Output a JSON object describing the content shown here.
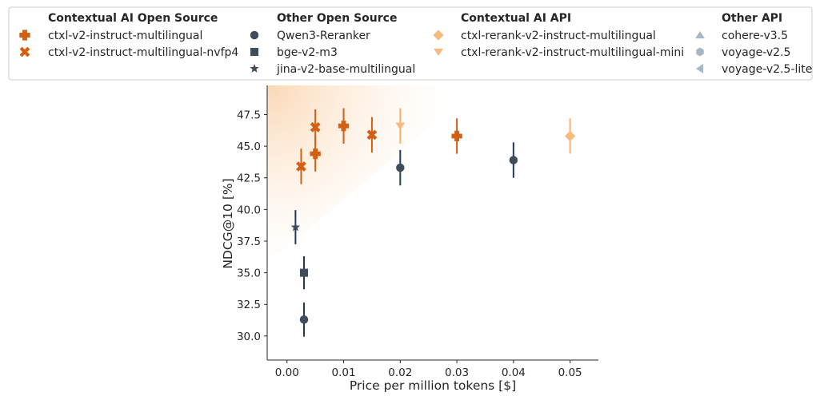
{
  "chart_data": {
    "type": "scatter",
    "xlabel": "Price per million tokens [$]",
    "ylabel": "NDCG@10 [%]",
    "xlim": [
      -0.0035,
      0.055
    ],
    "ylim": [
      28.1,
      49.8
    ],
    "xticks": [
      0.0,
      0.01,
      0.02,
      0.03,
      0.04,
      0.05
    ],
    "xtick_labels": [
      "0.00",
      "0.01",
      "0.02",
      "0.03",
      "0.04",
      "0.05"
    ],
    "yticks": [
      30.0,
      32.5,
      35.0,
      37.5,
      40.0,
      42.5,
      45.0,
      47.5
    ],
    "ytick_labels": [
      "30.0",
      "32.5",
      "35.0",
      "37.5",
      "40.0",
      "42.5",
      "45.0",
      "47.5"
    ],
    "grid": false,
    "legend_location": "top",
    "legend_groups": [
      {
        "title": "Contextual AI Open Source",
        "entries": [
          {
            "label": "ctxl-v2-instruct-multilingual",
            "marker": "plus",
            "color": "#d35f14"
          },
          {
            "label": "ctxl-v2-instruct-multilingual-nvfp4",
            "marker": "x",
            "color": "#d35f14"
          }
        ]
      },
      {
        "title": "Other Open Source",
        "entries": [
          {
            "label": "Qwen3-Reranker",
            "marker": "circle",
            "color": "#3f4c5a"
          },
          {
            "label": "bge-v2-m3",
            "marker": "square",
            "color": "#3f4c5a"
          },
          {
            "label": "jina-v2-base-multilingual",
            "marker": "star",
            "color": "#3f4c5a"
          }
        ]
      },
      {
        "title": "Contextual AI API",
        "entries": [
          {
            "label": "ctxl-rerank-v2-instruct-multilingual",
            "marker": "diamond",
            "color": "#f8bb7e"
          },
          {
            "label": "ctxl-rerank-v2-instruct-multilingual-mini",
            "marker": "triangle-down",
            "color": "#f8bb7e"
          }
        ]
      },
      {
        "title": "Other API",
        "entries": [
          {
            "label": "cohere-v3.5",
            "marker": "triangle-up",
            "color": "#aab7c2"
          },
          {
            "label": "voyage-v2.5",
            "marker": "hexagon",
            "color": "#aab7c2"
          },
          {
            "label": "voyage-v2.5-lite",
            "marker": "triangle-left",
            "color": "#aab7c2"
          }
        ]
      }
    ],
    "series": [
      {
        "name": "ctxl-v2-instruct-multilingual",
        "marker": "plus",
        "color": "#d35f14",
        "err_color": "#d35f14",
        "points": [
          {
            "x": 0.005,
            "y": 44.4,
            "err": 1.4
          },
          {
            "x": 0.01,
            "y": 46.6,
            "err": 1.4
          },
          {
            "x": 0.03,
            "y": 45.8,
            "err": 1.4
          }
        ]
      },
      {
        "name": "ctxl-v2-instruct-multilingual-nvfp4",
        "marker": "x",
        "color": "#d35f14",
        "err_color": "#d35f14",
        "points": [
          {
            "x": 0.0025,
            "y": 43.4,
            "err": 1.4
          },
          {
            "x": 0.005,
            "y": 46.5,
            "err": 1.4
          },
          {
            "x": 0.015,
            "y": 45.9,
            "err": 1.4
          }
        ]
      },
      {
        "name": "Qwen3-Reranker",
        "marker": "circle",
        "color": "#3f4c5a",
        "err_color": "#1f3a5a",
        "points": [
          {
            "x": 0.003,
            "y": 31.3,
            "err": 1.35
          },
          {
            "x": 0.02,
            "y": 43.3,
            "err": 1.4
          },
          {
            "x": 0.04,
            "y": 43.9,
            "err": 1.4
          }
        ]
      },
      {
        "name": "bge-v2-m3",
        "marker": "square",
        "color": "#3f4c5a",
        "err_color": "#1f3a5a",
        "points": [
          {
            "x": 0.003,
            "y": 35.0,
            "err": 1.3
          }
        ]
      },
      {
        "name": "jina-v2-base-multilingual",
        "marker": "star",
        "color": "#3f4c5a",
        "err_color": "#1f3a5a",
        "points": [
          {
            "x": 0.0015,
            "y": 38.6,
            "err": 1.35
          }
        ]
      },
      {
        "name": "ctxl-rerank-v2-instruct-multilingual",
        "marker": "diamond",
        "color": "#f8bb7e",
        "err_color": "#f8b26e",
        "points": [
          {
            "x": 0.05,
            "y": 45.8,
            "err": 1.4
          }
        ]
      },
      {
        "name": "ctxl-rerank-v2-instruct-multilingual-mini",
        "marker": "triangle-down",
        "color": "#f8bb7e",
        "err_color": "#f8b26e",
        "points": [
          {
            "x": 0.02,
            "y": 46.6,
            "err": 1.4
          }
        ]
      }
    ]
  }
}
